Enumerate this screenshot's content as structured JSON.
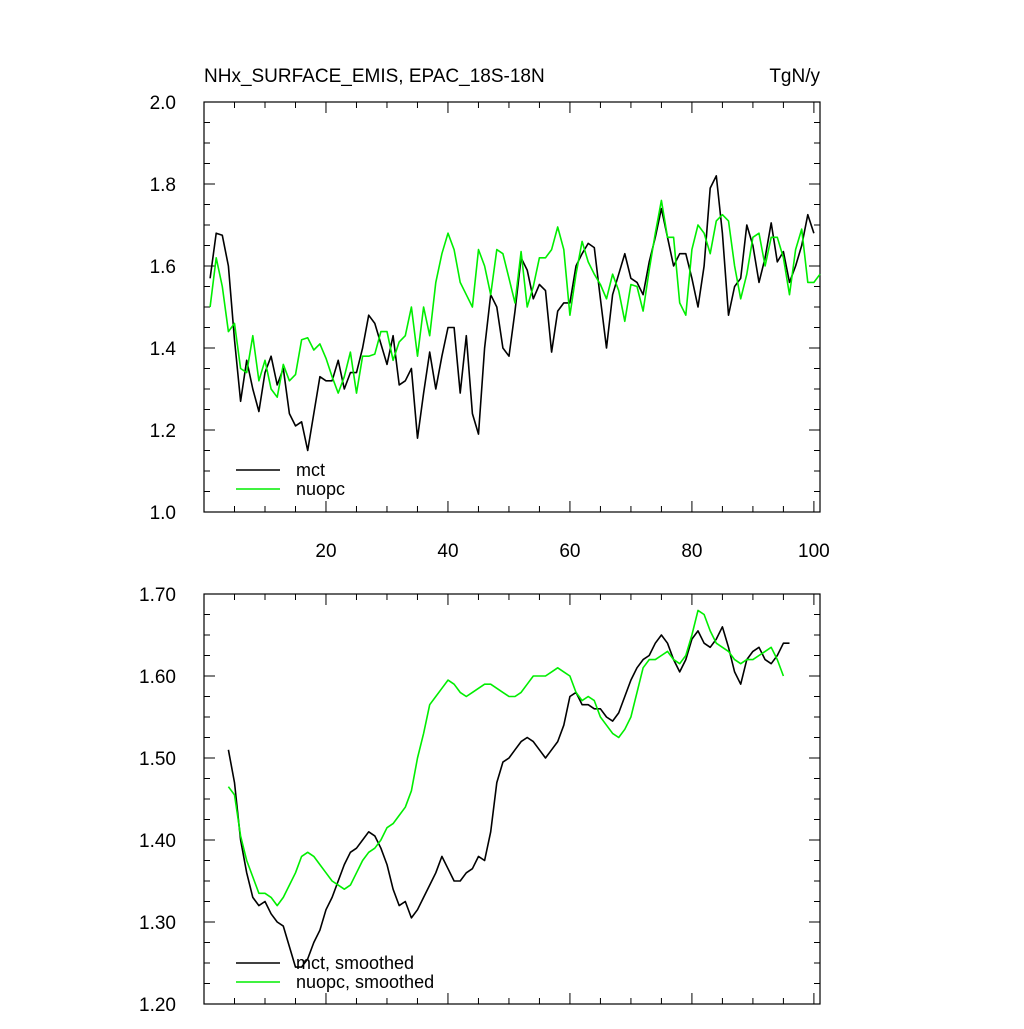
{
  "title": "NHx_SURFACE_EMIS, EPAC_18S-18N",
  "units": "TgN/y",
  "colors": {
    "mct": "#000000",
    "nuopc": "#00ee00",
    "axis": "#000000"
  },
  "chart_data": [
    {
      "type": "line",
      "title": "NHx_SURFACE_EMIS, EPAC_18S-18N",
      "units": "TgN/y",
      "xlim": [
        0,
        101
      ],
      "ylim": [
        1.0,
        2.0
      ],
      "xticks": [
        20,
        40,
        60,
        80,
        100
      ],
      "xtick_labels": [
        "20",
        "40",
        "60",
        "80",
        "100"
      ],
      "yticks": [
        1.0,
        1.2,
        1.4,
        1.6,
        1.8,
        2.0
      ],
      "ytick_labels": [
        "1.0",
        "1.2",
        "1.4",
        "1.6",
        "1.8",
        "2.0"
      ],
      "legend": "bottom-left",
      "x_start": 1,
      "series": [
        {
          "name": "mct",
          "color": "#000000",
          "values": [
            1.57,
            1.68,
            1.675,
            1.6,
            1.42,
            1.27,
            1.37,
            1.3,
            1.245,
            1.34,
            1.38,
            1.31,
            1.35,
            1.24,
            1.21,
            1.22,
            1.15,
            1.24,
            1.33,
            1.32,
            1.32,
            1.37,
            1.3,
            1.34,
            1.34,
            1.4,
            1.48,
            1.46,
            1.41,
            1.36,
            1.43,
            1.31,
            1.32,
            1.35,
            1.18,
            1.29,
            1.39,
            1.3,
            1.38,
            1.45,
            1.45,
            1.29,
            1.43,
            1.24,
            1.19,
            1.4,
            1.53,
            1.5,
            1.4,
            1.38,
            1.49,
            1.62,
            1.59,
            1.52,
            1.555,
            1.54,
            1.39,
            1.49,
            1.51,
            1.51,
            1.6,
            1.63,
            1.655,
            1.645,
            1.52,
            1.4,
            1.53,
            1.58,
            1.63,
            1.57,
            1.56,
            1.53,
            1.61,
            1.67,
            1.74,
            1.67,
            1.6,
            1.63,
            1.63,
            1.57,
            1.5,
            1.6,
            1.79,
            1.82,
            1.68,
            1.48,
            1.55,
            1.57,
            1.7,
            1.65,
            1.56,
            1.62,
            1.705,
            1.61,
            1.635,
            1.56,
            1.6,
            1.65,
            1.725,
            1.68
          ]
        },
        {
          "name": "nuopc",
          "color": "#00ee00",
          "values": [
            1.5,
            1.62,
            1.55,
            1.44,
            1.46,
            1.35,
            1.34,
            1.43,
            1.32,
            1.37,
            1.3,
            1.28,
            1.36,
            1.32,
            1.335,
            1.42,
            1.425,
            1.395,
            1.41,
            1.375,
            1.33,
            1.29,
            1.33,
            1.39,
            1.29,
            1.38,
            1.38,
            1.385,
            1.44,
            1.44,
            1.37,
            1.415,
            1.43,
            1.5,
            1.38,
            1.5,
            1.43,
            1.56,
            1.63,
            1.68,
            1.64,
            1.56,
            1.53,
            1.5,
            1.64,
            1.6,
            1.53,
            1.64,
            1.63,
            1.57,
            1.51,
            1.635,
            1.5,
            1.55,
            1.62,
            1.62,
            1.64,
            1.695,
            1.64,
            1.48,
            1.58,
            1.66,
            1.61,
            1.58,
            1.555,
            1.52,
            1.58,
            1.54,
            1.465,
            1.555,
            1.55,
            1.49,
            1.59,
            1.68,
            1.76,
            1.67,
            1.67,
            1.51,
            1.48,
            1.64,
            1.7,
            1.68,
            1.63,
            1.71,
            1.725,
            1.71,
            1.6,
            1.52,
            1.58,
            1.67,
            1.68,
            1.6,
            1.67,
            1.67,
            1.62,
            1.53,
            1.64,
            1.69,
            1.56,
            1.56,
            1.58
          ]
        }
      ]
    },
    {
      "type": "line",
      "title": "",
      "xlim": [
        0,
        101
      ],
      "ylim": [
        1.2,
        1.7
      ],
      "xticks": [
        20,
        40,
        60,
        80,
        100
      ],
      "xtick_labels": [],
      "yticks": [
        1.2,
        1.3,
        1.4,
        1.5,
        1.6,
        1.7
      ],
      "ytick_labels": [
        "1.20",
        "1.30",
        "1.40",
        "1.50",
        "1.60",
        "1.70"
      ],
      "legend": "bottom-left",
      "x_start": 4,
      "series": [
        {
          "name": "mct, smoothed",
          "color": "#000000",
          "values": [
            1.51,
            1.47,
            1.4,
            1.36,
            1.33,
            1.32,
            1.325,
            1.31,
            1.3,
            1.295,
            1.27,
            1.245,
            1.245,
            1.255,
            1.275,
            1.29,
            1.315,
            1.33,
            1.35,
            1.37,
            1.385,
            1.39,
            1.4,
            1.41,
            1.405,
            1.39,
            1.37,
            1.34,
            1.32,
            1.325,
            1.305,
            1.315,
            1.33,
            1.345,
            1.36,
            1.38,
            1.365,
            1.35,
            1.35,
            1.36,
            1.365,
            1.38,
            1.375,
            1.41,
            1.47,
            1.495,
            1.5,
            1.51,
            1.52,
            1.525,
            1.52,
            1.51,
            1.5,
            1.51,
            1.52,
            1.54,
            1.575,
            1.58,
            1.565,
            1.565,
            1.56,
            1.56,
            1.55,
            1.545,
            1.555,
            1.575,
            1.595,
            1.61,
            1.62,
            1.625,
            1.64,
            1.65,
            1.64,
            1.62,
            1.605,
            1.62,
            1.645,
            1.655,
            1.64,
            1.635,
            1.645,
            1.66,
            1.635,
            1.605,
            1.59,
            1.62,
            1.63,
            1.635,
            1.62,
            1.615,
            1.625,
            1.64,
            1.64
          ]
        },
        {
          "name": "nuopc, smoothed",
          "color": "#00ee00",
          "values": [
            1.465,
            1.455,
            1.405,
            1.375,
            1.355,
            1.335,
            1.335,
            1.33,
            1.32,
            1.33,
            1.345,
            1.36,
            1.38,
            1.385,
            1.38,
            1.37,
            1.36,
            1.35,
            1.345,
            1.34,
            1.345,
            1.36,
            1.375,
            1.385,
            1.39,
            1.4,
            1.415,
            1.42,
            1.43,
            1.44,
            1.46,
            1.5,
            1.53,
            1.565,
            1.575,
            1.585,
            1.595,
            1.59,
            1.58,
            1.575,
            1.58,
            1.585,
            1.59,
            1.59,
            1.585,
            1.58,
            1.575,
            1.575,
            1.58,
            1.59,
            1.6,
            1.6,
            1.6,
            1.605,
            1.61,
            1.605,
            1.6,
            1.58,
            1.57,
            1.575,
            1.57,
            1.55,
            1.54,
            1.53,
            1.525,
            1.535,
            1.55,
            1.58,
            1.61,
            1.62,
            1.62,
            1.625,
            1.63,
            1.62,
            1.615,
            1.625,
            1.65,
            1.68,
            1.675,
            1.655,
            1.64,
            1.635,
            1.63,
            1.62,
            1.615,
            1.62,
            1.62,
            1.625,
            1.63,
            1.635,
            1.62,
            1.6
          ]
        }
      ]
    }
  ]
}
